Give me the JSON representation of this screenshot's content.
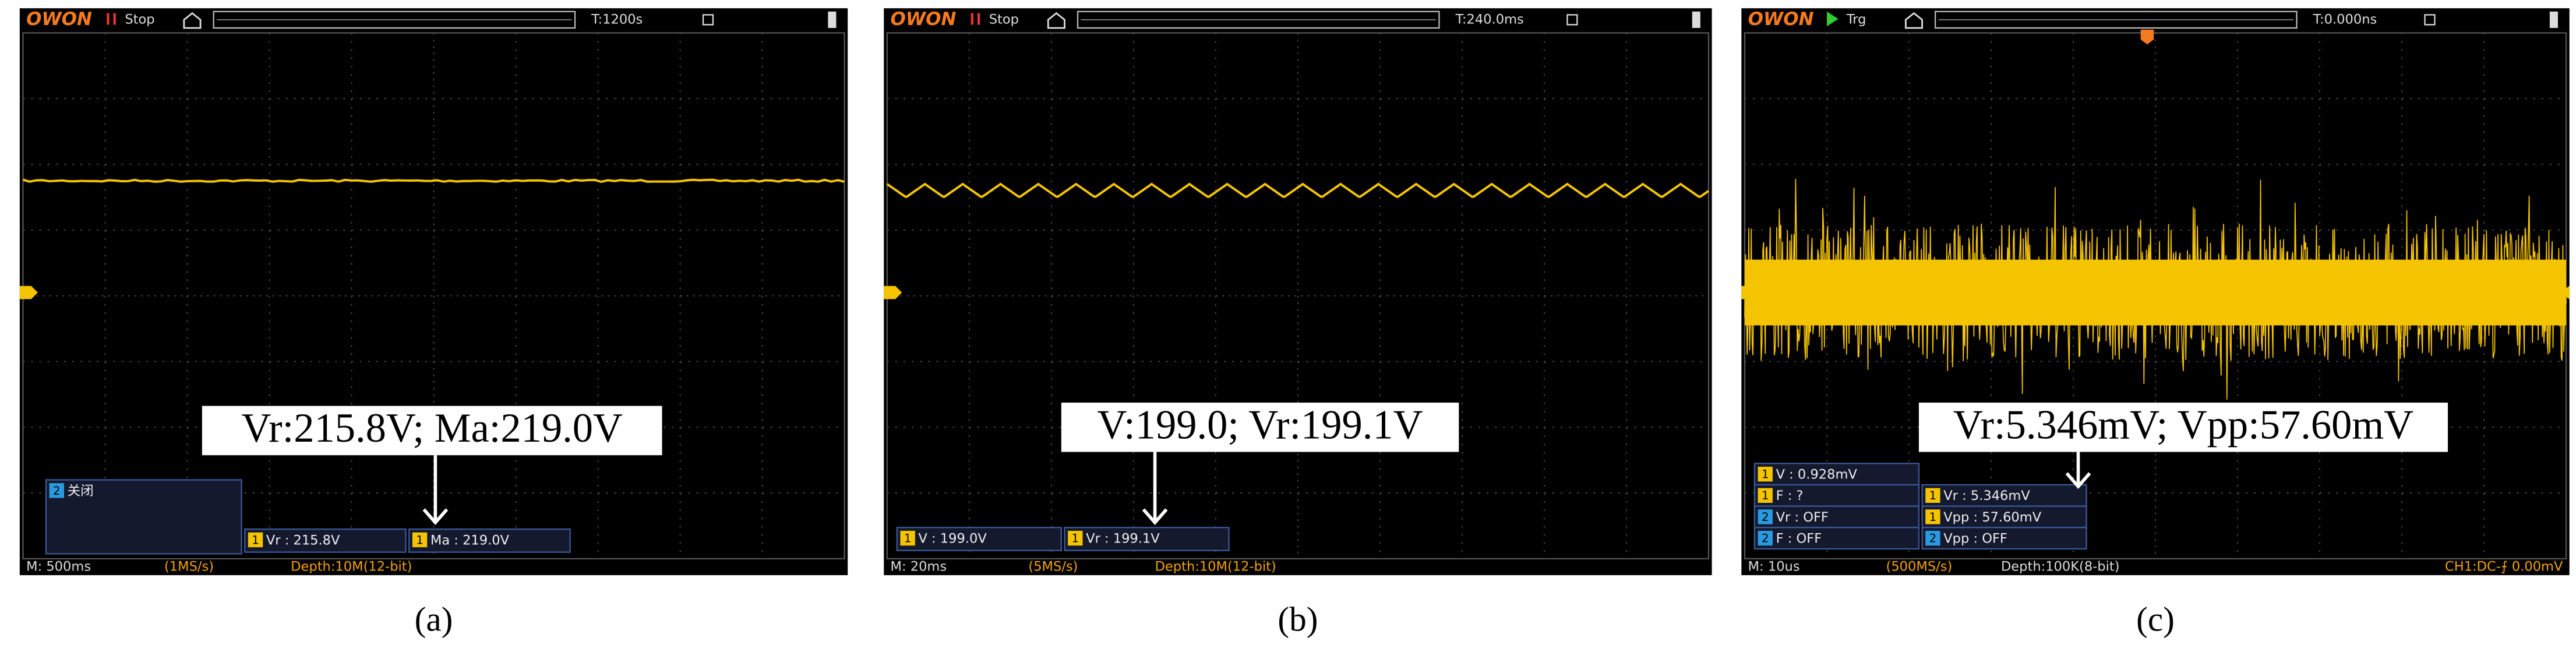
{
  "panels": [
    {
      "caption": "(a)",
      "brand": "OWON",
      "status": "Stop",
      "time": "T:1200s",
      "annotation": "Vr:215.8V; Ma:219.0V",
      "readouts": [
        {
          "channel": "2",
          "text": "关闭"
        },
        {
          "channel": "1",
          "text": "Vr : 215.8V"
        },
        {
          "channel": "1",
          "text": "Ma : 219.0V"
        }
      ],
      "footer": {
        "timebase": "M: 500ms",
        "rate": "(1MS/s)",
        "depth": "Depth:10M(12-bit)"
      }
    },
    {
      "caption": "(b)",
      "brand": "OWON",
      "status": "Stop",
      "time": "T:240.0ms",
      "annotation": "V:199.0; Vr:199.1V",
      "readouts": [
        {
          "channel": "1",
          "text": "V : 199.0V"
        },
        {
          "channel": "1",
          "text": "Vr : 199.1V"
        }
      ],
      "footer": {
        "timebase": "M: 20ms",
        "rate": "(5MS/s)",
        "depth": "Depth:10M(12-bit)"
      }
    },
    {
      "caption": "(c)",
      "brand": "OWON",
      "status": "Trg",
      "time": "T:0.000ns",
      "annotation": "Vr:5.346mV; Vpp:57.60mV",
      "readouts": [
        {
          "channel": "1",
          "text": "V : 0.928mV"
        },
        {
          "channel": "1",
          "text": "F :  ?"
        },
        {
          "channel": "1",
          "text": "Vr : 5.346mV"
        },
        {
          "channel": "2",
          "text": "Vr : OFF"
        },
        {
          "channel": "1",
          "text": "Vpp : 57.60mV"
        },
        {
          "channel": "2",
          "text": "F : OFF"
        },
        {
          "channel": "2",
          "text": "Vpp : OFF"
        }
      ],
      "footer": {
        "timebase": "M: 10us",
        "rate": "(500MS/s)",
        "depth": "Depth:100K(8-bit)",
        "coupling": "CH1:DC-⨍ 0.00mV"
      }
    }
  ]
}
